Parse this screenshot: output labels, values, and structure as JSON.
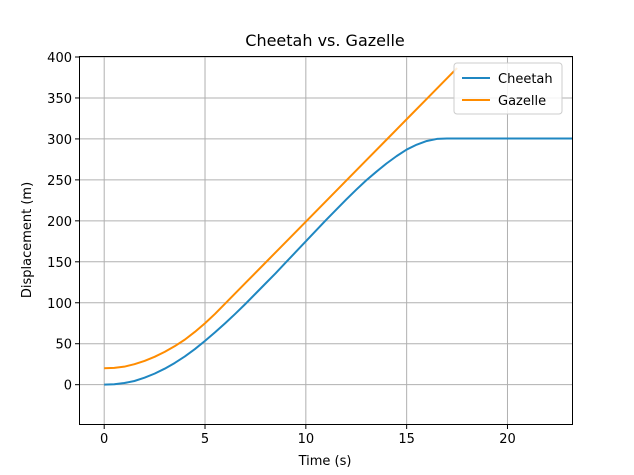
{
  "chart_data": {
    "type": "line",
    "title": "Cheetah vs. Gazelle",
    "xlabel": "Time (s)",
    "ylabel": "Displacement (m)",
    "xlim": [
      -1.2,
      23.2
    ],
    "ylim": [
      -48,
      400
    ],
    "xticks": [
      0,
      5,
      10,
      15,
      20
    ],
    "yticks": [
      0,
      50,
      100,
      150,
      200,
      250,
      300,
      350,
      400
    ],
    "grid": true,
    "legend_position": "top-right",
    "series": [
      {
        "name": "Cheetah",
        "color": "#1f87c2",
        "x": [
          0,
          0.5,
          1,
          1.5,
          2,
          2.5,
          3,
          3.5,
          4,
          4.5,
          5,
          5.5,
          6,
          6.5,
          7,
          7.5,
          8,
          8.5,
          9,
          9.5,
          10,
          10.5,
          11,
          11.5,
          12,
          12.5,
          13,
          13.5,
          14,
          14.5,
          15,
          15.5,
          16,
          16.5,
          17,
          17.5,
          18,
          18.5,
          19,
          20,
          21,
          22,
          23.2
        ],
        "y": [
          0,
          0.5,
          2,
          4.5,
          8.5,
          13.5,
          19.5,
          26.5,
          34.5,
          43.5,
          53.5,
          64,
          75,
          86.5,
          98.5,
          111,
          123.5,
          136,
          149,
          162,
          175,
          188,
          201,
          213.5,
          226,
          238,
          249.5,
          260,
          270,
          279,
          287,
          293,
          297.5,
          300,
          300.5,
          300.5,
          300.5,
          300.5,
          300.5,
          300.5,
          300.5,
          300.5,
          300.5
        ]
      },
      {
        "name": "Gazelle",
        "color": "#ff8c00",
        "x": [
          0,
          0.5,
          1,
          1.5,
          2,
          2.5,
          3,
          3.5,
          4,
          4.5,
          5,
          5.5,
          6,
          7,
          8,
          9,
          10,
          11,
          12,
          13,
          14,
          15,
          16,
          17,
          17.5
        ],
        "y": [
          20,
          20.5,
          22,
          25,
          29,
          34,
          40,
          47,
          55,
          64.5,
          75,
          86.5,
          99,
          124,
          149,
          174,
          199,
          224,
          249,
          274,
          299,
          324,
          349,
          374,
          386.5
        ]
      }
    ]
  }
}
